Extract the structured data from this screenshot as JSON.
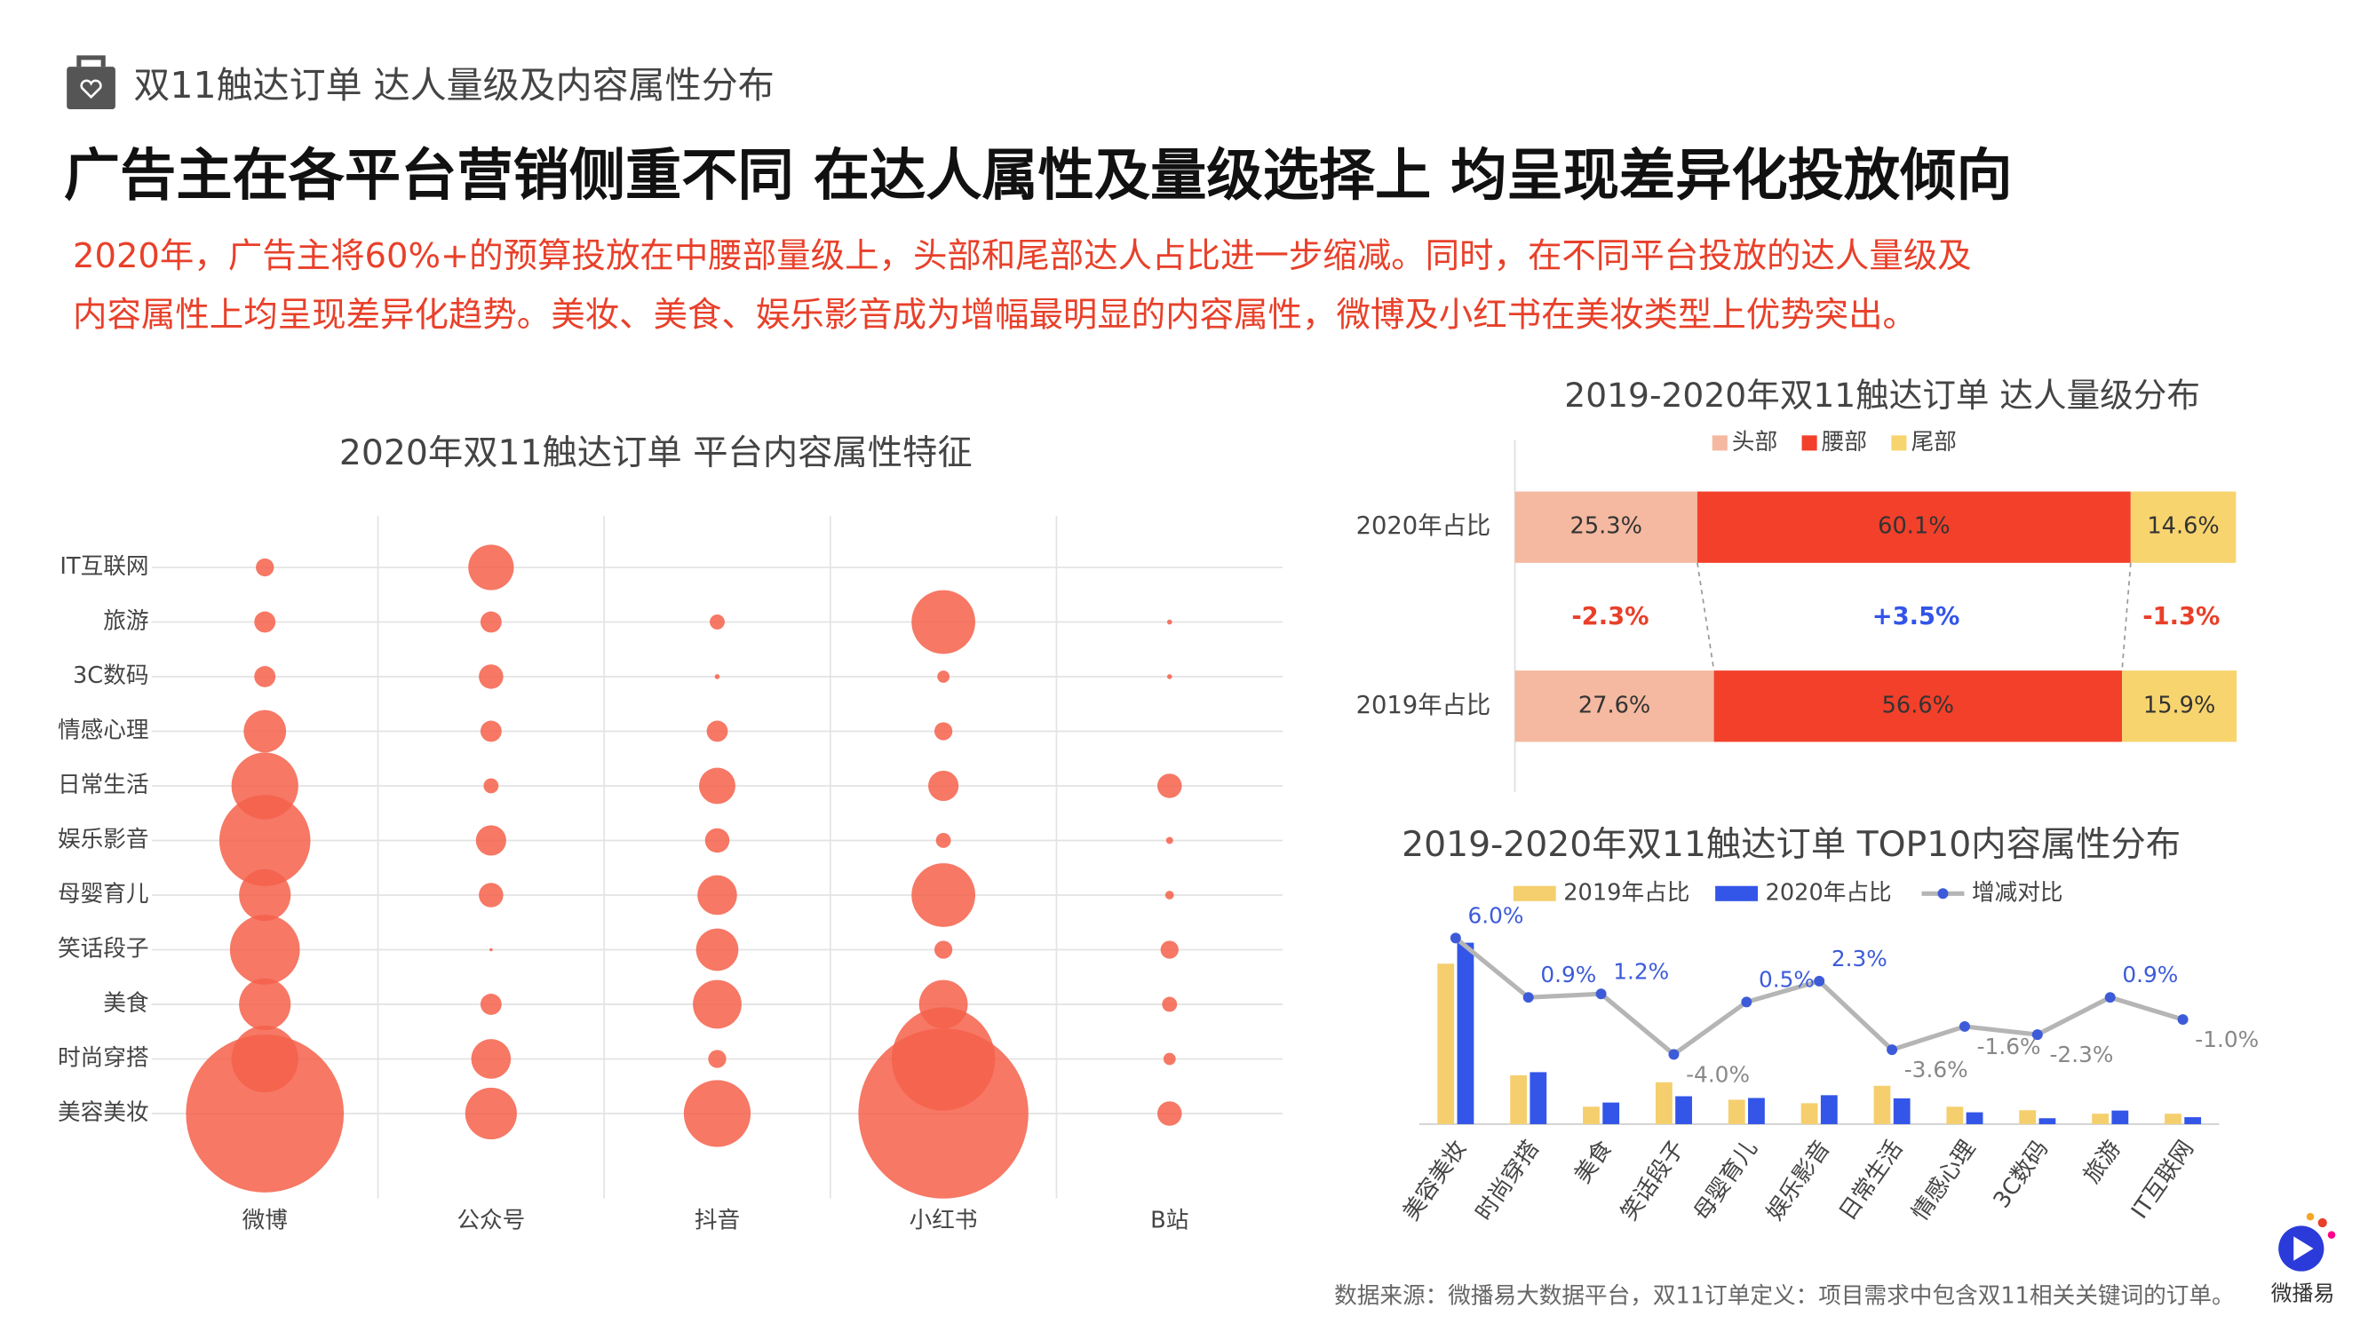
{
  "header": {
    "section": "双11触达订单 达人量级及内容属性分布",
    "title": "广告主在各平台营销侧重不同 在达人属性及量级选择上 均呈现差异化投放倾向",
    "subtitle_lines": [
      "2020年，广告主将60%+的预算投放在中腰部量级上，头部和尾部达人占比进一步缩减。同时，在不同平台投放的达人量级及",
      "内容属性上均呈现差异化趋势。美妆、美食、娱乐影音成为增幅最明显的内容属性，微博及小红书在美妆类型上优势突出。"
    ]
  },
  "footer": {
    "source": "数据来源：微播易大数据平台，双11订单定义：项目需求中包含双11相关关键词的订单。",
    "logo": "微播易"
  },
  "chart_data": [
    {
      "type": "bubble",
      "title": "2020年双11触达订单 平台内容属性特征",
      "color": "#f4604a",
      "grid": true,
      "categories": [
        "微博",
        "公众号",
        "抖音",
        "小红书",
        "B站"
      ],
      "rows": [
        "IT互联网",
        "旅游",
        "3C数码",
        "情感心理",
        "日常生活",
        "娱乐影音",
        "母婴育儿",
        "笑话段子",
        "美食",
        "时尚穿搭",
        "美容美妆"
      ],
      "series": [
        {
          "name": "微博",
          "values": [
            1.3,
            1.8,
            1.8,
            7.2,
            17.9,
            33.3,
            10.7,
            19.6,
            10.7,
            17.9,
            100
          ]
        },
        {
          "name": "公众号",
          "values": [
            8.3,
            1.8,
            2.4,
            1.8,
            0.9,
            3.7,
            2.4,
            0.04,
            1.8,
            6.3,
            10.7
          ]
        },
        {
          "name": "抖音",
          "values": [
            null,
            0.9,
            0.1,
            1.8,
            5.3,
            2.4,
            6.3,
            7.2,
            9.5,
            1.3,
            17.9
          ]
        },
        {
          "name": "小红书",
          "values": [
            null,
            16.3,
            0.6,
            1.3,
            3.7,
            0.9,
            16.3,
            1.3,
            9.5,
            42.8,
            116
          ]
        },
        {
          "name": "B站",
          "values": [
            null,
            0.1,
            0.1,
            null,
            2.4,
            0.2,
            0.3,
            1.3,
            0.9,
            0.6,
            2.4
          ]
        }
      ]
    },
    {
      "type": "stacked_hbar",
      "title": "2019-2020年双11触达订单 达人量级分布",
      "categories": [
        "2020年占比",
        "2019年占比"
      ],
      "xlim": [
        0,
        100
      ],
      "legend": "top",
      "series": [
        {
          "name": "头部",
          "color": "#f4b9a0",
          "values": [
            25.3,
            27.6
          ],
          "value_labels": [
            "25.3%",
            "27.6%"
          ]
        },
        {
          "name": "腰部",
          "color": "#f2402a",
          "values": [
            60.1,
            56.6
          ],
          "value_labels": [
            "60.1%",
            "56.6%"
          ]
        },
        {
          "name": "尾部",
          "color": "#f7d46e",
          "values": [
            14.6,
            15.9
          ],
          "value_labels": [
            "14.6%",
            "15.9%"
          ]
        }
      ],
      "changes": {
        "values": [
          -2.3,
          3.5,
          -1.3
        ],
        "value_labels": [
          "-2.3%",
          "+3.5%",
          "-1.3%"
        ],
        "colors": [
          "#e8402a",
          "#3355e8",
          "#e8402a"
        ]
      }
    },
    {
      "type": "bar_line",
      "title": "2019-2020年双11触达订单 TOP10内容属性分布",
      "legend": "top",
      "ylim": [
        0,
        60
      ],
      "y2lim": [
        -10,
        8
      ],
      "categories": [
        "美容美妆",
        "时尚穿搭",
        "美食",
        "笑话段子",
        "母婴育儿",
        "娱乐影音",
        "日常生活",
        "情感心理",
        "3C数码",
        "旅游",
        "IT互联网"
      ],
      "series": [
        {
          "name": "2019年占比",
          "color": "#f5cf6e",
          "values": [
            46,
            14,
            5,
            12,
            7,
            6,
            11,
            5,
            4,
            3,
            3
          ]
        },
        {
          "name": "2020年占比",
          "color": "#3355e8",
          "values": [
            52,
            14.9,
            6.2,
            8,
            7.5,
            8.3,
            7.4,
            3.4,
            1.7,
            3.9,
            2
          ]
        },
        {
          "name": "增减对比",
          "color": "#b5b5b5",
          "axis": "y2",
          "values": [
            6.0,
            0.9,
            1.2,
            -4.0,
            0.5,
            2.3,
            -3.6,
            -1.6,
            -2.3,
            0.9,
            -1.0
          ],
          "value_labels": [
            "6.0%",
            "0.9%",
            "1.2%",
            "-4.0%",
            "0.5%",
            "2.3%",
            "-3.6%",
            "-1.6%",
            "-2.3%",
            "0.9%",
            "-1.0%"
          ]
        }
      ]
    }
  ]
}
